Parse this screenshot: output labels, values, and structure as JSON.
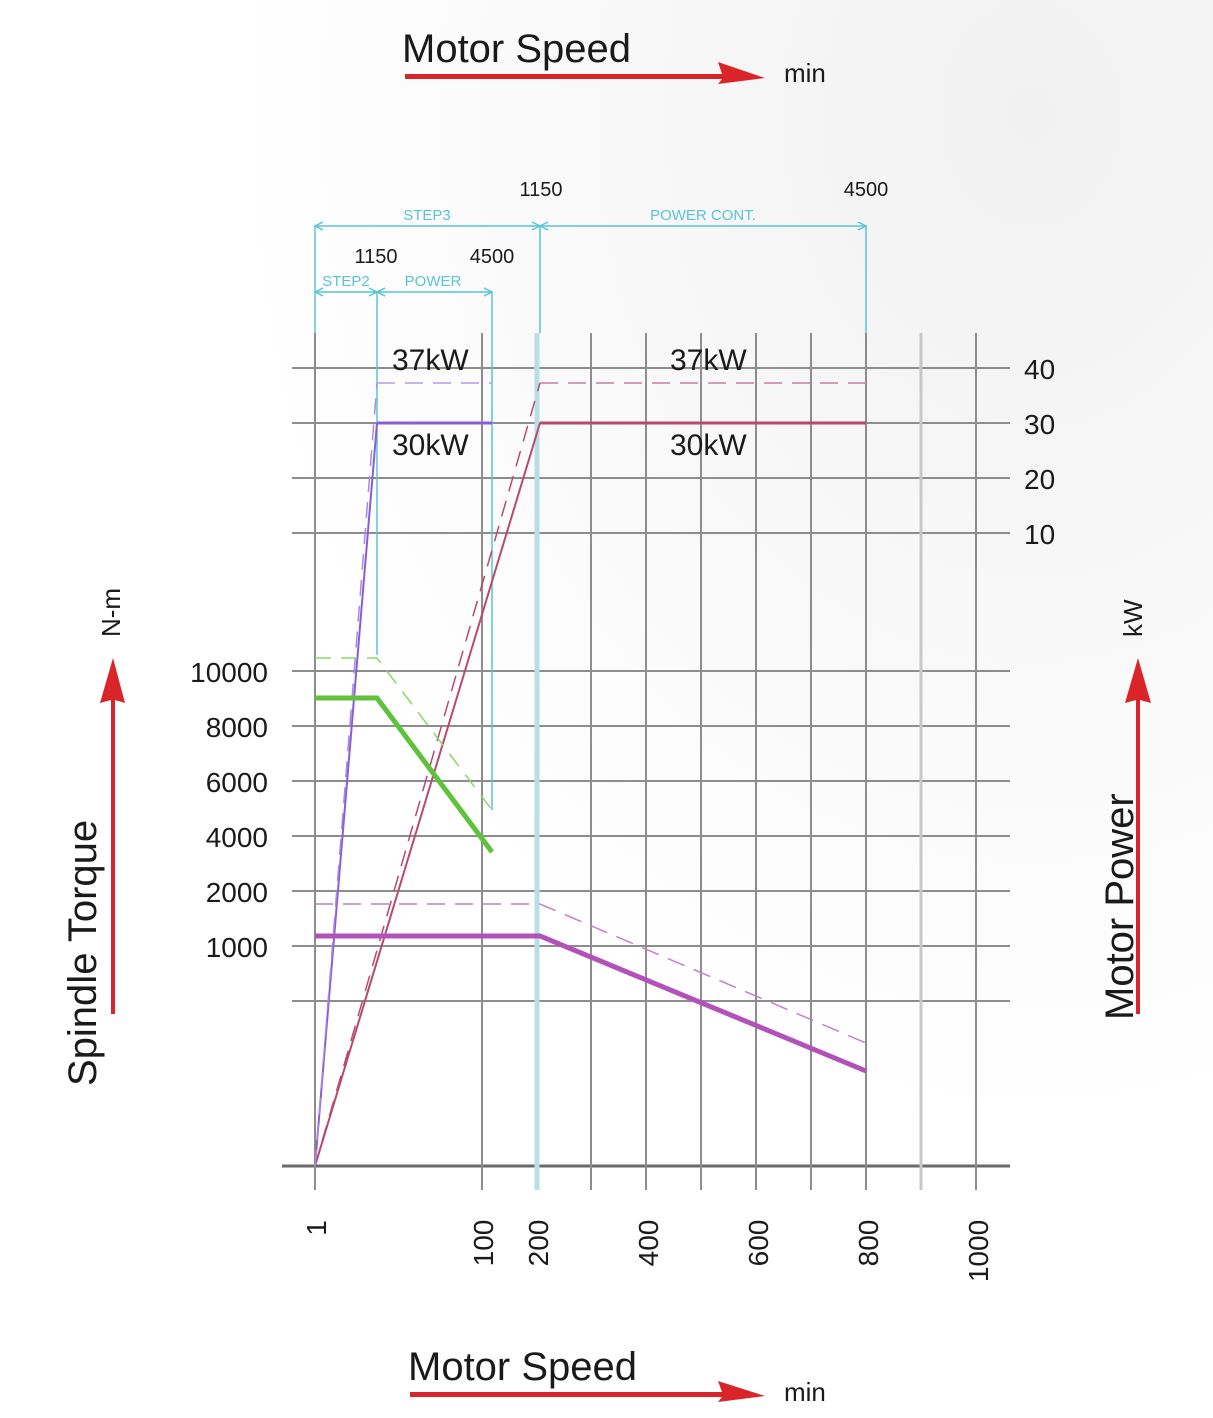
{
  "chart_data": {
    "type": "line",
    "title_top": "Motor Speed",
    "title_bottom": "Motor Speed",
    "speed_unit": "min",
    "left_axis": {
      "label": "Spindle  Torque",
      "unit": "N-m",
      "ticks": [
        "10000",
        "8000",
        "6000",
        "4000",
        "2000",
        "1000"
      ]
    },
    "right_axis": {
      "label": "Motor Power",
      "unit": "kW",
      "ticks": [
        "40",
        "30",
        "20",
        "10"
      ]
    },
    "x_ticks": [
      "1",
      "100",
      "200",
      "400",
      "600",
      "800",
      "1000"
    ],
    "ranges": {
      "step3": {
        "label": "STEP3",
        "end_rpm": "1150"
      },
      "power_cont": {
        "label": "POWER CONT.",
        "start_rpm": "1150",
        "end_rpm": "4500"
      },
      "step2": {
        "label": "STEP2",
        "end_rpm": "1150"
      },
      "power": {
        "label": "POWER",
        "end_rpm": "4500"
      }
    },
    "power_labels": {
      "left_peak": "37kW",
      "left_cont": "30kW",
      "right_peak": "37kW",
      "right_cont": "30kW"
    },
    "series_colors": {
      "step2_power": "#8a5cd6",
      "step3_power": "#b84a6e",
      "step2_torque": "#5ec23a",
      "step3_torque": "#b152b8",
      "range_marker": "#5bc3d6",
      "arrow": "#d9242a"
    }
  }
}
